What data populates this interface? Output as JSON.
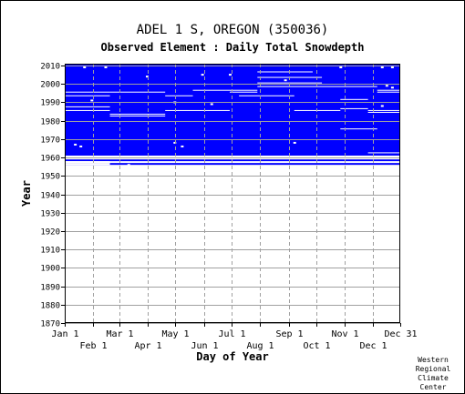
{
  "header": {
    "title": "ADEL 1 S, OREGON   (350036)",
    "subtitle": "Observed Element : Daily Total Snowdepth"
  },
  "credit": [
    "Western",
    "Regional",
    "Climate",
    "Center"
  ],
  "chart_data": {
    "type": "heatmap",
    "title": "ADEL 1 S, OREGON   (350036)",
    "subtitle": "Observed Element : Daily Total Snowdepth",
    "xlabel": "Day of Year",
    "ylabel": "Year",
    "xlim": [
      1,
      365
    ],
    "ylim": [
      1870,
      2011
    ],
    "grid": true,
    "x_ticks_top_row": [
      {
        "label": "Jan 1",
        "day": 1
      },
      {
        "label": "Mar 1",
        "day": 60
      },
      {
        "label": "May 1",
        "day": 121
      },
      {
        "label": "Jul 1",
        "day": 182
      },
      {
        "label": "Sep 1",
        "day": 244
      },
      {
        "label": "Nov 1",
        "day": 305
      },
      {
        "label": "Dec 31",
        "day": 365
      }
    ],
    "x_ticks_bottom_row": [
      {
        "label": "Feb 1",
        "day": 32
      },
      {
        "label": "Apr 1",
        "day": 91
      },
      {
        "label": "Jun 1",
        "day": 152
      },
      {
        "label": "Aug 1",
        "day": 213
      },
      {
        "label": "Oct 1",
        "day": 274
      },
      {
        "label": "Dec 1",
        "day": 335
      }
    ],
    "y_ticks": [
      1870,
      1880,
      1890,
      1900,
      1910,
      1920,
      1930,
      1940,
      1950,
      1960,
      1970,
      1980,
      1990,
      2000,
      2010
    ],
    "data_color": "#0000ff",
    "data_blocks": [
      {
        "year_start": 1961,
        "year_end": 2011,
        "day_start": 1,
        "day_end": 365
      },
      {
        "year_start": 1958,
        "year_end": 1959,
        "day_start": 1,
        "day_end": 365
      },
      {
        "year_start": 1956,
        "year_end": 1957,
        "day_start": 1,
        "day_end": 365
      }
    ],
    "data_gaps": [
      {
        "year_start": 1959,
        "year_end": 1961,
        "day_start": 1,
        "day_end": 365
      },
      {
        "year_start": 1957,
        "year_end": 1958,
        "day_start": 1,
        "day_end": 50
      },
      {
        "year_start": 1956,
        "year_end": 1957,
        "day_start": 1,
        "day_end": 50
      },
      {
        "year_start": 1995.3,
        "year_end": 1995.8,
        "day_start": 1,
        "day_end": 50
      },
      {
        "year_start": 1993.3,
        "year_end": 1993.8,
        "day_start": 1,
        "day_end": 50
      },
      {
        "year_start": 1987.3,
        "year_end": 1987.8,
        "day_start": 1,
        "day_end": 50
      },
      {
        "year_start": 1985.3,
        "year_end": 1985.8,
        "day_start": 1,
        "day_end": 50
      },
      {
        "year_start": 1995.3,
        "year_end": 1995.8,
        "day_start": 50,
        "day_end": 110
      },
      {
        "year_start": 1983.3,
        "year_end": 1983.8,
        "day_start": 50,
        "day_end": 110
      },
      {
        "year_start": 1982.3,
        "year_end": 1982.8,
        "day_start": 50,
        "day_end": 110
      },
      {
        "year_start": 1993.3,
        "year_end": 1993.8,
        "day_start": 110,
        "day_end": 140
      },
      {
        "year_start": 1985.3,
        "year_end": 1985.8,
        "day_start": 110,
        "day_end": 180
      },
      {
        "year_start": 1996.3,
        "year_end": 1996.8,
        "day_start": 140,
        "day_end": 180
      },
      {
        "year_start": 1995.3,
        "year_end": 1995.8,
        "day_start": 180,
        "day_end": 210
      },
      {
        "year_start": 1996.3,
        "year_end": 1996.8,
        "day_start": 180,
        "day_end": 210
      },
      {
        "year_start": 2006.3,
        "year_end": 2006.8,
        "day_start": 210,
        "day_end": 270
      },
      {
        "year_start": 2003.3,
        "year_end": 2003.8,
        "day_start": 210,
        "day_end": 280
      },
      {
        "year_start": 2000.3,
        "year_end": 2000.8,
        "day_start": 210,
        "day_end": 280
      },
      {
        "year_start": 1998.3,
        "year_end": 1998.8,
        "day_start": 210,
        "day_end": 340
      },
      {
        "year_start": 1993.3,
        "year_end": 1993.8,
        "day_start": 190,
        "day_end": 250
      },
      {
        "year_start": 1985.3,
        "year_end": 1985.8,
        "day_start": 250,
        "day_end": 300
      },
      {
        "year_start": 1991.3,
        "year_end": 1991.8,
        "day_start": 300,
        "day_end": 330
      },
      {
        "year_start": 1975.3,
        "year_end": 1975.8,
        "day_start": 300,
        "day_end": 340
      },
      {
        "year_start": 1986.3,
        "year_end": 1986.8,
        "day_start": 300,
        "day_end": 330
      },
      {
        "year_start": 1995.3,
        "year_end": 1995.8,
        "day_start": 340,
        "day_end": 365
      },
      {
        "year_start": 1996.3,
        "year_end": 1996.8,
        "day_start": 340,
        "day_end": 365
      },
      {
        "year_start": 1985.3,
        "year_end": 1985.8,
        "day_start": 330,
        "day_end": 365
      },
      {
        "year_start": 1984.3,
        "year_end": 1984.8,
        "day_start": 330,
        "day_end": 365
      },
      {
        "year_start": 1962.3,
        "year_end": 1962.8,
        "day_start": 330,
        "day_end": 365
      }
    ],
    "missing_markers": [
      {
        "year": 2009,
        "day": 22
      },
      {
        "year": 2009,
        "day": 45
      },
      {
        "year": 2009,
        "day": 300
      },
      {
        "year": 2009,
        "day": 345
      },
      {
        "year": 2009,
        "day": 356
      },
      {
        "year": 2005,
        "day": 150
      },
      {
        "year": 2005,
        "day": 180
      },
      {
        "year": 2004,
        "day": 90
      },
      {
        "year": 2002,
        "day": 240
      },
      {
        "year": 1999,
        "day": 350
      },
      {
        "year": 1998,
        "day": 356
      },
      {
        "year": 1991,
        "day": 30
      },
      {
        "year": 1990,
        "day": 120
      },
      {
        "year": 1989,
        "day": 160
      },
      {
        "year": 1988,
        "day": 345
      },
      {
        "year": 1966,
        "day": 18
      },
      {
        "year": 1967,
        "day": 12
      },
      {
        "year": 1968,
        "day": 120
      },
      {
        "year": 1966,
        "day": 128
      },
      {
        "year": 1968,
        "day": 250
      },
      {
        "year": 1956,
        "day": 70
      }
    ]
  }
}
